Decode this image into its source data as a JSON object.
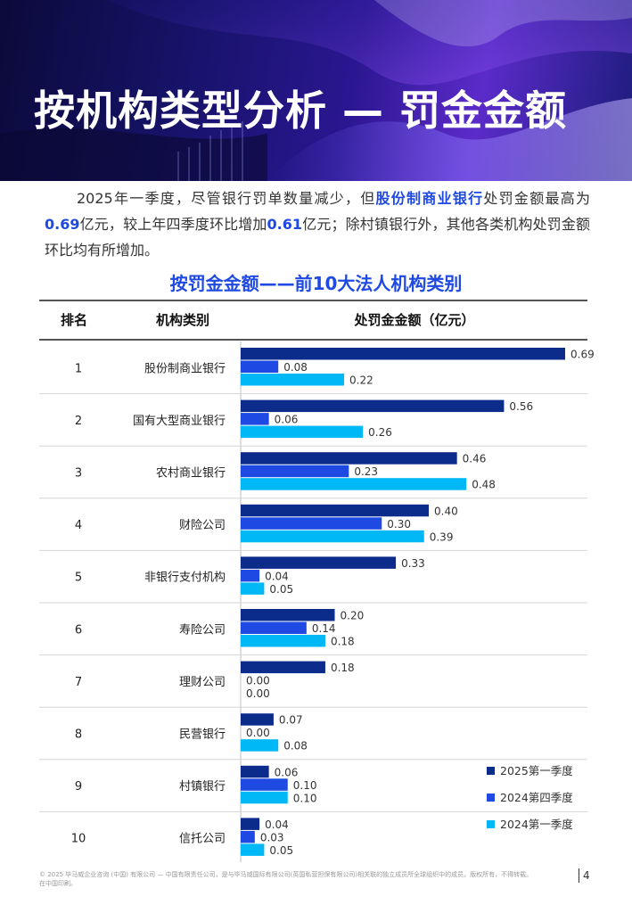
{
  "header": {
    "title": "按机构类型分析 — 罚金金额"
  },
  "intro": {
    "part1": "2025年一季度，尽管银行罚单数量减少，但",
    "hl1": "股份制商业银行",
    "part2": "处罚金额最高为",
    "hl2": "0.69",
    "part3": "亿元，较上年四季度环比增加",
    "hl3": "0.61",
    "part4": "亿元；除村镇银行外，其他各类机构处罚金额环比均有所增加。"
  },
  "chart_data": {
    "type": "bar",
    "orientation": "horizontal",
    "title": "按罚金金额——前10大法人机构类别",
    "columns": [
      "排名",
      "机构类别",
      "处罚金金额（亿元）"
    ],
    "ranks": [
      "1",
      "2",
      "3",
      "4",
      "5",
      "6",
      "7",
      "8",
      "9",
      "10"
    ],
    "categories": [
      "股份制商业银行",
      "国有大型商业银行",
      "农村商业银行",
      "财险公司",
      "非银行支付机构",
      "寿险公司",
      "理财公司",
      "民营银行",
      "村镇银行",
      "信托公司"
    ],
    "series": [
      {
        "name": "2025第一季度",
        "color": "#0c2c8c",
        "values": [
          0.69,
          0.56,
          0.46,
          0.4,
          0.33,
          0.2,
          0.18,
          0.07,
          0.06,
          0.04
        ],
        "labels": [
          "0.69",
          "0.56",
          "0.46",
          "0.40",
          "0.33",
          "0.20",
          "0.18",
          "0.07",
          "0.06",
          "0.04"
        ]
      },
      {
        "name": "2024第四季度",
        "color": "#1e49e2",
        "values": [
          0.08,
          0.06,
          0.23,
          0.3,
          0.04,
          0.14,
          0.0,
          0.0,
          0.1,
          0.03
        ],
        "labels": [
          "0.08",
          "0.06",
          "0.23",
          "0.30",
          "0.04",
          "0.14",
          "0.00",
          "0.00",
          "0.10",
          "0.03"
        ]
      },
      {
        "name": "2024第一季度",
        "color": "#00b8f5",
        "values": [
          0.22,
          0.26,
          0.48,
          0.39,
          0.05,
          0.18,
          0.0,
          0.08,
          0.1,
          0.05
        ],
        "labels": [
          "0.22",
          "0.26",
          "0.48",
          "0.39",
          "0.05",
          "0.18",
          "0.00",
          "0.08",
          "0.10",
          "0.05"
        ]
      }
    ],
    "xlim": [
      0,
      0.69
    ],
    "grid": false,
    "legend_position": "bottom-right"
  },
  "footer": {
    "text": "© 2025 毕马威企业咨询 (中国) 有限公司 — 中国有限责任公司，是与毕马威国际有限公司(英国私营担保有限公司)相关联的独立成员所全球组织中的成员。版权所有，不得转载。在中国印刷。",
    "page": "4"
  }
}
